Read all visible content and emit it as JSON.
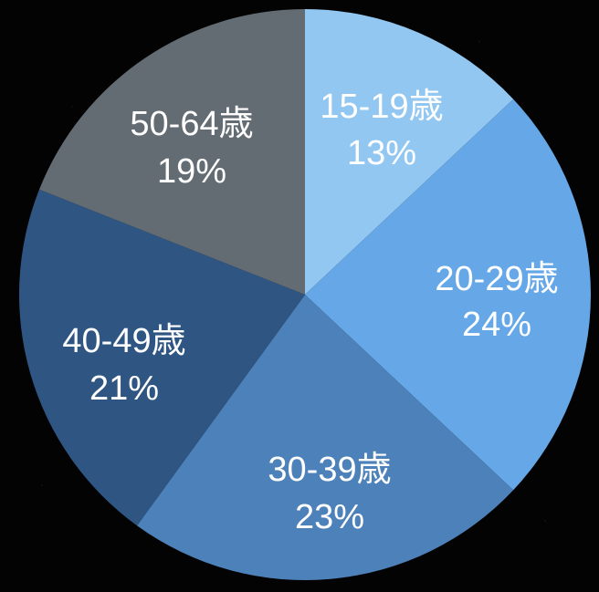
{
  "chart_data": {
    "type": "pie",
    "start_angle_degrees": 0,
    "direction": "clockwise",
    "categories": [
      "15-19歳",
      "20-29歳",
      "30-39歳",
      "40-49歳",
      "50-64歳"
    ],
    "values": [
      13,
      24,
      23,
      21,
      19
    ],
    "value_labels": [
      "13%",
      "24%",
      "23%",
      "21%",
      "19%"
    ],
    "colors": [
      "#92c7f2",
      "#66a8e7",
      "#4d81b9",
      "#2f5683",
      "#636b73"
    ]
  }
}
